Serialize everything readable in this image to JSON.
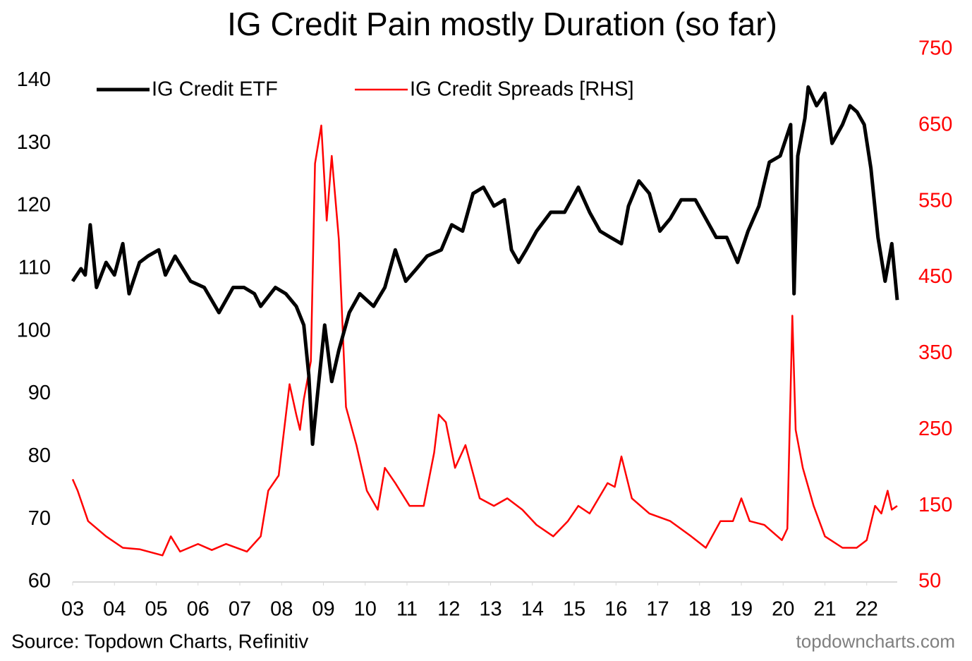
{
  "chart_data": {
    "type": "line",
    "title": "IG Credit Pain mostly Duration (so far)",
    "source": "Source: Topdown Charts, Refinitiv",
    "watermark": "topdowncharts.com",
    "xlim": [
      3,
      22.73
    ],
    "xticks": [
      {
        "value": 3,
        "label": "03"
      },
      {
        "value": 4,
        "label": "04"
      },
      {
        "value": 5,
        "label": "05"
      },
      {
        "value": 6,
        "label": "06"
      },
      {
        "value": 7,
        "label": "07"
      },
      {
        "value": 8,
        "label": "08"
      },
      {
        "value": 9,
        "label": "09"
      },
      10,
      11,
      12,
      13,
      14,
      15,
      16,
      17,
      18,
      19,
      20,
      21,
      22
    ],
    "ylim": [
      60,
      145
    ],
    "yticks": [
      60,
      70,
      80,
      90,
      100,
      110,
      120,
      130,
      140
    ],
    "y2lim": [
      50,
      750
    ],
    "y2ticks": [
      50,
      150,
      250,
      350,
      450,
      550,
      650,
      750
    ],
    "legend": "upper left",
    "series": [
      {
        "name": "IG Credit ETF",
        "color": "#000000",
        "x": [
          3.0,
          3.2,
          3.3,
          3.42,
          3.57,
          3.8,
          4.0,
          4.2,
          4.35,
          4.6,
          4.8,
          5.06,
          5.22,
          5.45,
          5.82,
          6.15,
          6.5,
          6.84,
          7.1,
          7.35,
          7.5,
          7.85,
          8.1,
          8.35,
          8.53,
          8.65,
          8.74,
          8.86,
          9.03,
          9.2,
          9.37,
          9.62,
          9.87,
          10.2,
          10.47,
          10.72,
          10.97,
          11.23,
          11.48,
          11.82,
          12.07,
          12.33,
          12.58,
          12.83,
          13.08,
          13.33,
          13.5,
          13.67,
          13.85,
          14.1,
          14.44,
          14.77,
          15.1,
          15.37,
          15.62,
          15.87,
          16.13,
          16.3,
          16.55,
          16.8,
          17.05,
          17.3,
          17.56,
          17.9,
          18.15,
          18.4,
          18.65,
          18.91,
          19.16,
          19.42,
          19.67,
          19.93,
          20.18,
          20.26,
          20.35,
          20.52,
          20.6,
          20.8,
          21.0,
          21.17,
          21.42,
          21.6,
          21.77,
          21.94,
          22.1,
          22.27,
          22.44,
          22.6,
          22.73
        ],
        "values": [
          108,
          110,
          109,
          117,
          107,
          111,
          109,
          114,
          106,
          111,
          112,
          113,
          109,
          112,
          108,
          107,
          103,
          107,
          107,
          106,
          104,
          107,
          106,
          104,
          101,
          93,
          82,
          90,
          101,
          92,
          97,
          103,
          106,
          104,
          107,
          113,
          108,
          110,
          112,
          113,
          117,
          116,
          122,
          123,
          120,
          121,
          113,
          111,
          113,
          116,
          119,
          119,
          123,
          119,
          116,
          115,
          114,
          120,
          124,
          122,
          116,
          118,
          121,
          121,
          118,
          115,
          115,
          111,
          116,
          120,
          127,
          128,
          133,
          106,
          128,
          134,
          139,
          136,
          138,
          130,
          133,
          136,
          135,
          133,
          126,
          115,
          108,
          114,
          105
        ]
      },
      {
        "name": "IG Credit Spreads [RHS]",
        "color": "#ff0000",
        "axis": "y2",
        "x": [
          3.0,
          3.12,
          3.37,
          3.8,
          4.2,
          4.6,
          5.15,
          5.35,
          5.57,
          6.0,
          6.33,
          6.67,
          7.17,
          7.5,
          7.68,
          7.93,
          8.19,
          8.35,
          8.44,
          8.53,
          8.7,
          8.8,
          8.95,
          9.08,
          9.2,
          9.37,
          9.54,
          9.79,
          10.04,
          10.3,
          10.47,
          10.72,
          11.06,
          11.4,
          11.65,
          11.76,
          11.93,
          12.15,
          12.4,
          12.74,
          13.08,
          13.4,
          13.76,
          14.1,
          14.5,
          14.85,
          15.1,
          15.37,
          15.8,
          15.97,
          16.13,
          16.38,
          16.8,
          17.3,
          17.8,
          18.15,
          18.5,
          18.8,
          19.0,
          19.2,
          19.55,
          19.97,
          20.1,
          20.22,
          20.3,
          20.47,
          20.73,
          21.0,
          21.42,
          21.76,
          22.0,
          22.2,
          22.35,
          22.5,
          22.6,
          22.73
        ],
        "values": [
          185,
          170,
          130,
          110,
          95,
          93,
          85,
          110,
          90,
          100,
          92,
          100,
          90,
          110,
          170,
          190,
          310,
          270,
          250,
          290,
          340,
          600,
          650,
          525,
          610,
          500,
          280,
          230,
          170,
          145,
          200,
          180,
          150,
          150,
          220,
          270,
          260,
          200,
          230,
          160,
          150,
          160,
          145,
          125,
          110,
          130,
          150,
          140,
          180,
          175,
          215,
          160,
          140,
          130,
          110,
          95,
          130,
          130,
          160,
          130,
          125,
          105,
          120,
          400,
          250,
          200,
          150,
          110,
          95,
          95,
          105,
          150,
          140,
          170,
          145,
          150
        ]
      }
    ]
  }
}
